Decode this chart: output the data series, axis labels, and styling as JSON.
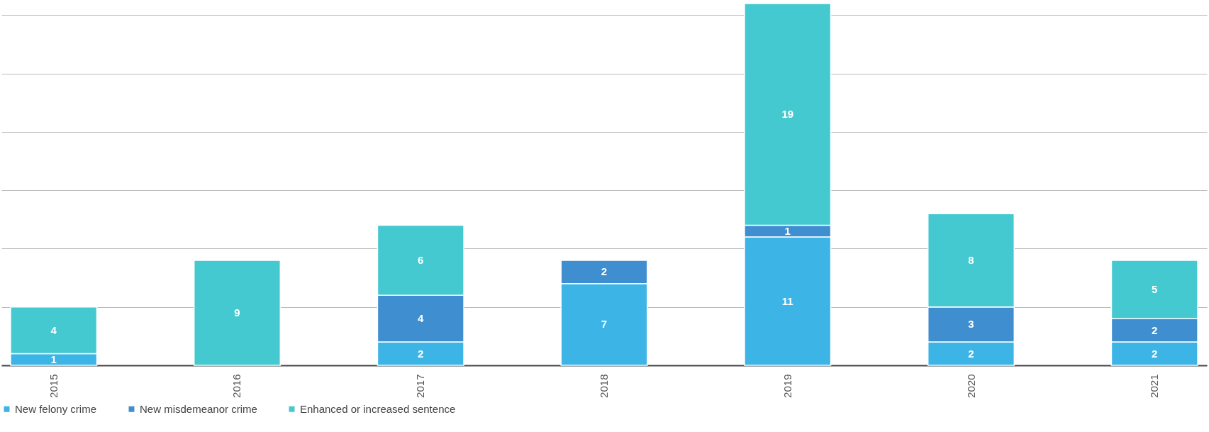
{
  "chart_data": {
    "type": "bar",
    "stacked": true,
    "categories": [
      "2015",
      "2016",
      "2017",
      "2018",
      "2019",
      "2020",
      "2021"
    ],
    "series": [
      {
        "name": "New felony crime",
        "color": "#3cb4e6",
        "values": [
          1,
          null,
          2,
          7,
          11,
          2,
          2
        ]
      },
      {
        "name": "New misdemeanor crime",
        "color": "#3e8ed0",
        "values": [
          null,
          null,
          4,
          2,
          1,
          3,
          2
        ]
      },
      {
        "name": "Enhanced or increased sentence",
        "color": "#45c9d0",
        "values": [
          4,
          9,
          6,
          null,
          19,
          8,
          5
        ]
      }
    ],
    "ylim": [
      0,
      31
    ],
    "yticks": [
      0,
      5,
      10,
      15,
      20,
      25,
      30
    ],
    "tick_labels": "x",
    "grid": "y",
    "legend": "bottom",
    "data_labels": true
  }
}
